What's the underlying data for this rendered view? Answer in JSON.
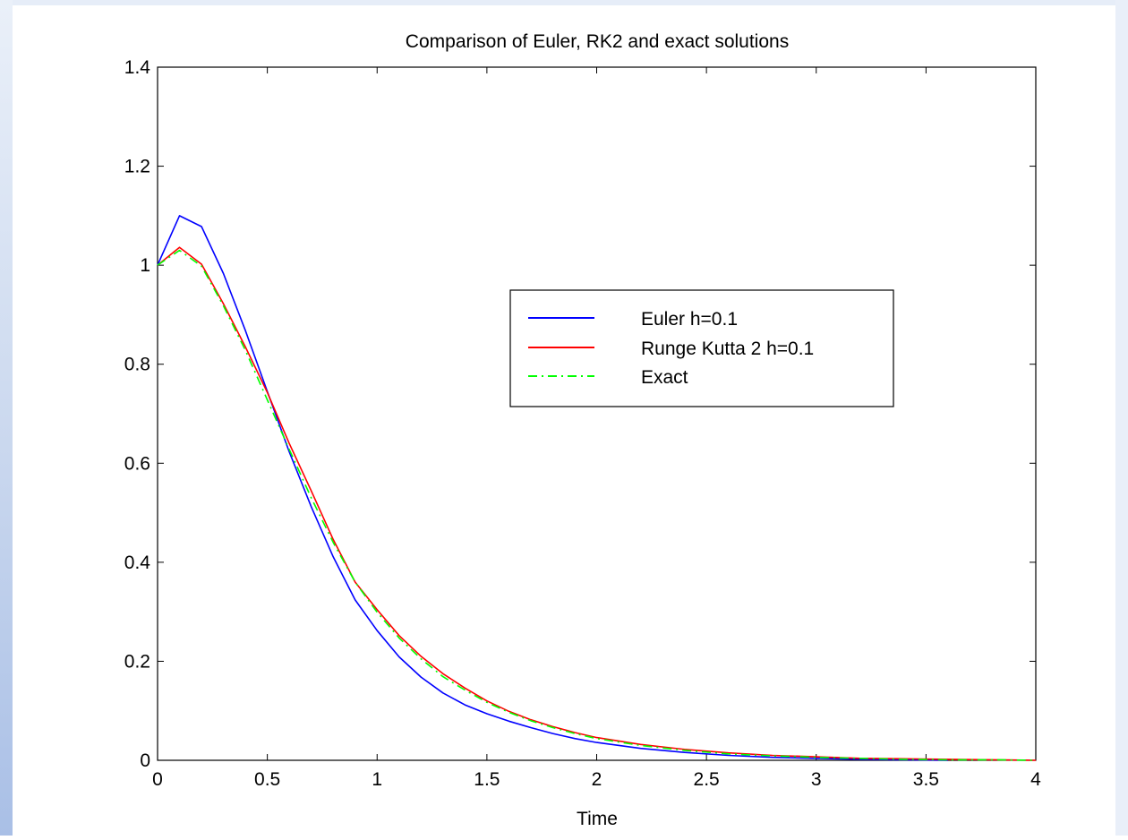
{
  "colors": {
    "euler": "#0000ff",
    "rk2": "#ff0000",
    "exact": "#00ff00"
  },
  "chart_data": {
    "type": "line",
    "title": "Comparison of Euler, RK2 and exact solutions",
    "xlabel": "Time",
    "ylabel": "",
    "xlim": [
      0,
      4
    ],
    "ylim": [
      0,
      1.4
    ],
    "xticks": [
      "0",
      "0.5",
      "1",
      "1.5",
      "2",
      "2.5",
      "3",
      "3.5",
      "4"
    ],
    "yticks": [
      "0",
      "0.2",
      "0.4",
      "0.6",
      "0.8",
      "1",
      "1.2",
      "1.4"
    ],
    "grid": false,
    "legend_position": "upper-right",
    "series": [
      {
        "name": "Euler h=0.1",
        "style": "solid",
        "x": [
          0,
          0.1,
          0.2,
          0.3,
          0.4,
          0.5,
          0.6,
          0.7,
          0.8,
          0.9,
          1.0,
          1.1,
          1.2,
          1.3,
          1.4,
          1.5,
          1.6,
          1.7,
          1.8,
          1.9,
          2.0,
          2.2,
          2.4,
          2.6,
          2.8,
          3.0,
          3.2,
          3.4,
          3.6
        ],
        "y": [
          1.0,
          1.1,
          1.078,
          0.983,
          0.868,
          0.745,
          0.623,
          0.512,
          0.411,
          0.324,
          0.262,
          0.209,
          0.168,
          0.136,
          0.112,
          0.094,
          0.079,
          0.066,
          0.054,
          0.044,
          0.036,
          0.024,
          0.016,
          0.01,
          0.006,
          0.004,
          0.002,
          0.001,
          0.0
        ]
      },
      {
        "name": "Runge Kutta 2 h=0.1",
        "style": "solid",
        "x": [
          0,
          0.1,
          0.2,
          0.3,
          0.4,
          0.5,
          0.6,
          0.7,
          0.8,
          0.9,
          1.0,
          1.1,
          1.2,
          1.3,
          1.4,
          1.5,
          1.6,
          1.7,
          1.8,
          1.9,
          2.0,
          2.2,
          2.4,
          2.6,
          2.8,
          3.0,
          3.2,
          3.4,
          3.6,
          3.8,
          4.0
        ],
        "y": [
          1.0,
          1.036,
          1.002,
          0.922,
          0.835,
          0.743,
          0.64,
          0.544,
          0.446,
          0.36,
          0.304,
          0.252,
          0.21,
          0.175,
          0.146,
          0.12,
          0.099,
          0.082,
          0.068,
          0.056,
          0.046,
          0.032,
          0.022,
          0.015,
          0.01,
          0.007,
          0.004,
          0.003,
          0.002,
          0.001,
          0.0
        ]
      },
      {
        "name": "Exact",
        "style": "dashdot",
        "x": [
          0,
          0.1,
          0.2,
          0.3,
          0.4,
          0.5,
          0.6,
          0.7,
          0.8,
          0.9,
          1.0,
          1.1,
          1.2,
          1.3,
          1.4,
          1.5,
          1.6,
          1.7,
          1.8,
          1.9,
          2.0,
          2.2,
          2.4,
          2.6,
          2.8,
          3.0,
          3.2,
          3.4,
          3.6,
          3.8,
          4.0
        ],
        "y": [
          1.0,
          1.03,
          0.998,
          0.918,
          0.828,
          0.728,
          0.628,
          0.53,
          0.44,
          0.36,
          0.299,
          0.247,
          0.205,
          0.169,
          0.142,
          0.117,
          0.097,
          0.08,
          0.066,
          0.054,
          0.044,
          0.03,
          0.02,
          0.013,
          0.009,
          0.006,
          0.004,
          0.002,
          0.001,
          0.001,
          0.0
        ]
      }
    ]
  }
}
